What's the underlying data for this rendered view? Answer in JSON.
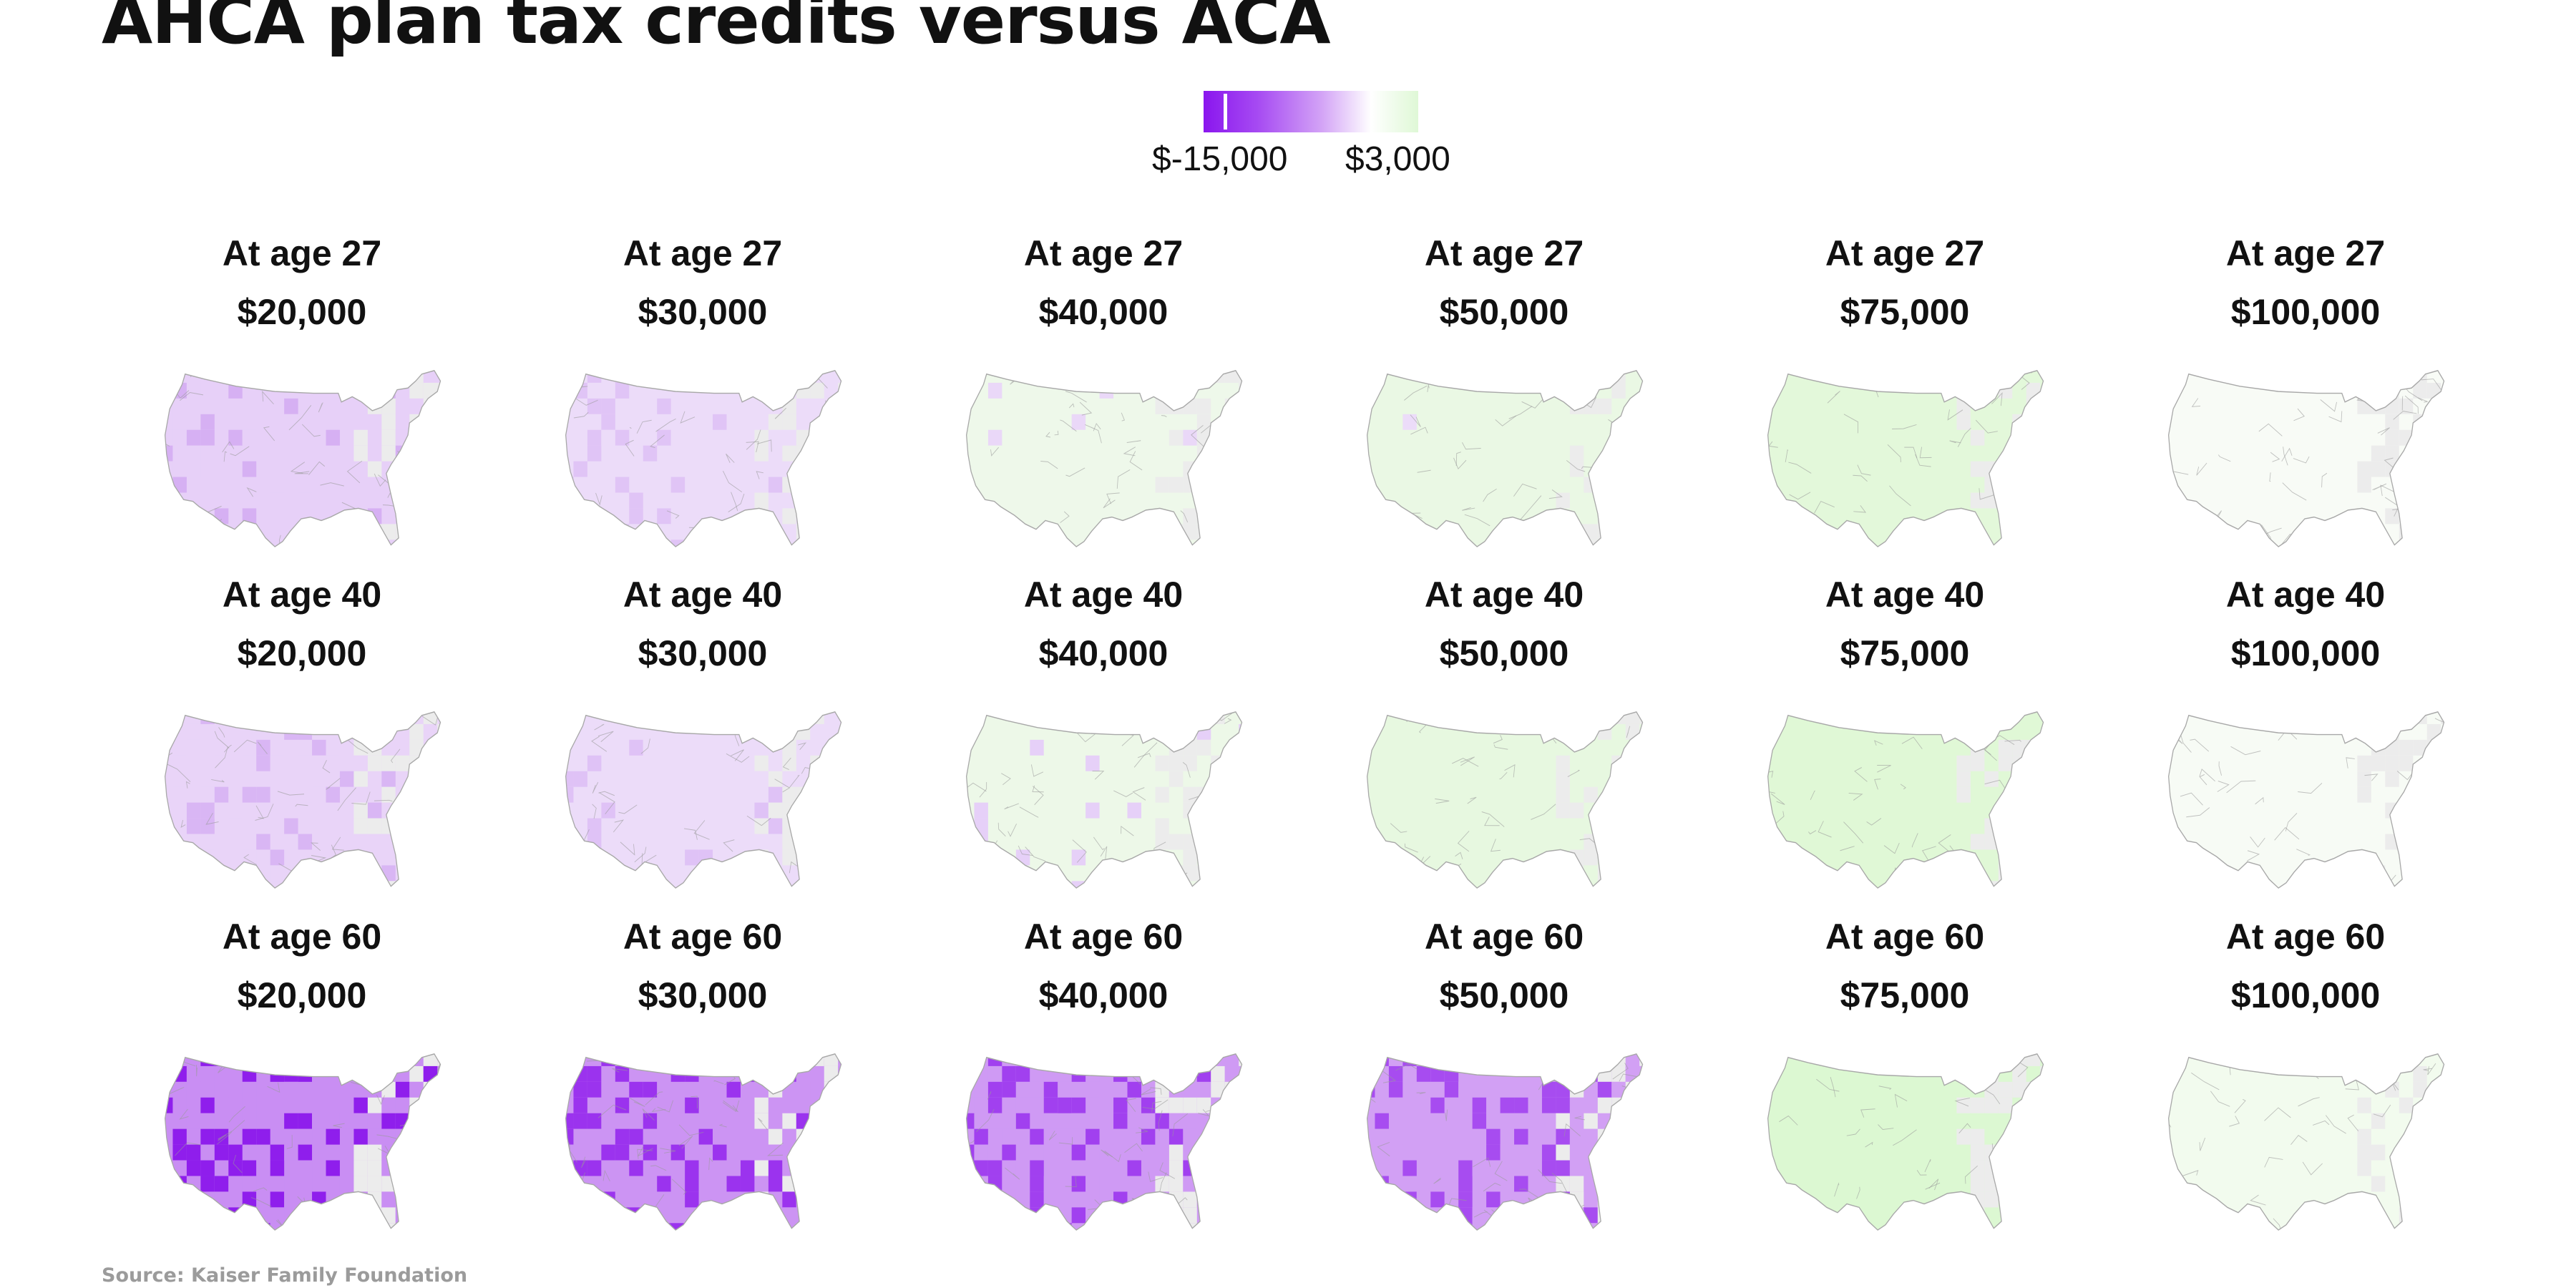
{
  "title": "AHCA plan tax credits versus ACA",
  "legend": {
    "min_label": "$-15,000",
    "max_label": "$3,000",
    "min_value": -15000,
    "max_value": 3000,
    "colors": {
      "low": "#8a16ee",
      "mid": "#ffffff",
      "high": "#dff8d6"
    }
  },
  "source": "Source: Kaiser Family Foundation",
  "panels": [
    {
      "age": "At age 27",
      "income": "$20,000",
      "shade": "#e7d0f8",
      "dark": "#d6b0f3",
      "intensity": 0.35
    },
    {
      "age": "At age 27",
      "income": "$30,000",
      "shade": "#ecdcf9",
      "dark": "#e0c4f6",
      "intensity": 0.25
    },
    {
      "age": "At age 27",
      "income": "$40,000",
      "shade": "#eef8ea",
      "dark": "#ead8f8",
      "intensity": 0.12
    },
    {
      "age": "At age 27",
      "income": "$50,000",
      "shade": "#eaf8e4",
      "dark": "#ecdcf9",
      "intensity": 0.08
    },
    {
      "age": "At age 27",
      "income": "$75,000",
      "shade": "#e3f8da",
      "dark": "#e3f8da",
      "intensity": 0.0
    },
    {
      "age": "At age 27",
      "income": "$100,000",
      "shade": "#f8fbf6",
      "dark": "#f8fbf6",
      "intensity": 0.0
    },
    {
      "age": "At age 40",
      "income": "$20,000",
      "shade": "#e9d4f8",
      "dark": "#d9b6f4",
      "intensity": 0.35
    },
    {
      "age": "At age 40",
      "income": "$30,000",
      "shade": "#ecdcf9",
      "dark": "#dfc2f6",
      "intensity": 0.25
    },
    {
      "age": "At age 40",
      "income": "$40,000",
      "shade": "#edf8e8",
      "dark": "#e6d0f8",
      "intensity": 0.12
    },
    {
      "age": "At age 40",
      "income": "$50,000",
      "shade": "#e7f8e0",
      "dark": "#ead8f8",
      "intensity": 0.06
    },
    {
      "age": "At age 40",
      "income": "$75,000",
      "shade": "#e0f8d6",
      "dark": "#e0f8d6",
      "intensity": 0.0
    },
    {
      "age": "At age 40",
      "income": "$100,000",
      "shade": "#f7fbf5",
      "dark": "#f7fbf5",
      "intensity": 0.0
    },
    {
      "age": "At age 60",
      "income": "$20,000",
      "shade": "#c98ef3",
      "dark": "#8f1eec",
      "intensity": 0.8
    },
    {
      "age": "At age 60",
      "income": "$30,000",
      "shade": "#cc94f3",
      "dark": "#9b33ee",
      "intensity": 0.75
    },
    {
      "age": "At age 60",
      "income": "$40,000",
      "shade": "#cf9af4",
      "dark": "#a140ef",
      "intensity": 0.72
    },
    {
      "age": "At age 60",
      "income": "$50,000",
      "shade": "#d2a0f4",
      "dark": "#a74cf0",
      "intensity": 0.7
    },
    {
      "age": "At age 60",
      "income": "$75,000",
      "shade": "#dcf8d2",
      "dark": "#dcf8d2",
      "intensity": 0.0
    },
    {
      "age": "At age 60",
      "income": "$100,000",
      "shade": "#f2fbee",
      "dark": "#f2fbee",
      "intensity": 0.0
    }
  ]
}
